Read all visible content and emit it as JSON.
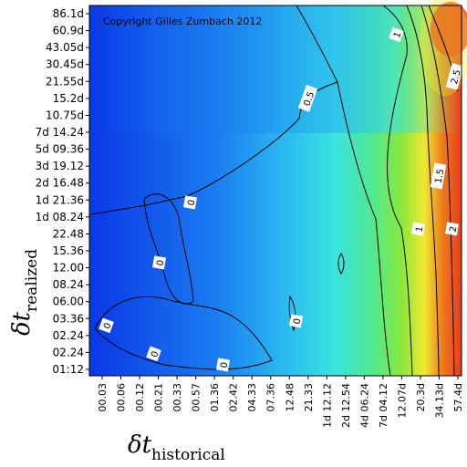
{
  "chart_data": {
    "type": "heatmap",
    "annotation": "Copyright Gilles Zumbach 2012",
    "x_ticks": [
      "00.03",
      "00.06",
      "00.12",
      "00.21",
      "00.33",
      "00.57",
      "01.36",
      "02.42",
      "04.33",
      "07.36",
      "12.48",
      "21.33",
      "1d 12.12",
      "2d 12.54",
      "4d 06.24",
      "7d 04.12",
      "12.07d",
      "20.3d",
      "34.13d",
      "57.4d"
    ],
    "y_ticks": [
      "86.1d",
      "60.9d",
      "43.05d",
      "30.45d",
      "21.55d",
      "15.2d",
      "10.75d",
      "7d 14.24",
      "5d 09.36",
      "3d 19.12",
      "2d 16.48",
      "1d 21.36",
      "1d 08.24",
      "22.48",
      "15.36",
      "12.00",
      "08.24",
      "06.00",
      "03.36",
      "02.24",
      "02.24",
      "01:12"
    ],
    "contour_levels": [
      "0",
      "0.5",
      "1",
      "1.5",
      "2",
      "2.5"
    ],
    "colormap": [
      "#0a37e6",
      "#1a7cf0",
      "#2ab8f0",
      "#3ae3e0",
      "#50e890",
      "#8be83a",
      "#f0e830",
      "#ee7a1c",
      "#e63c1e"
    ]
  }
}
